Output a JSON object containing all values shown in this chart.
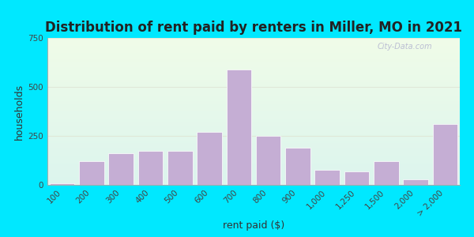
{
  "title": "Distribution of rent paid by renters in Miller, MO in 2021",
  "xlabel": "rent paid ($)",
  "ylabel": "households",
  "bar_color": "#c5aed4",
  "background_outer": "#00e8ff",
  "ylim": [
    0,
    750
  ],
  "yticks": [
    0,
    250,
    500,
    750
  ],
  "title_fontsize": 12,
  "axis_label_fontsize": 9,
  "tick_fontsize": 7.5,
  "categories": [
    "100",
    "200",
    "300",
    "400",
    "500",
    "600",
    "700",
    "800",
    "900",
    "1,000",
    "1,250",
    "1,500",
    "2,000",
    "> 2,000"
  ],
  "values": [
    10,
    120,
    160,
    175,
    175,
    270,
    590,
    250,
    190,
    75,
    70,
    120,
    30,
    310
  ],
  "watermark": "City-Data.com",
  "bg_top_color": "#f0fce8",
  "bg_bottom_color": "#e0f8f4",
  "grid_color": "#e0e8d8"
}
